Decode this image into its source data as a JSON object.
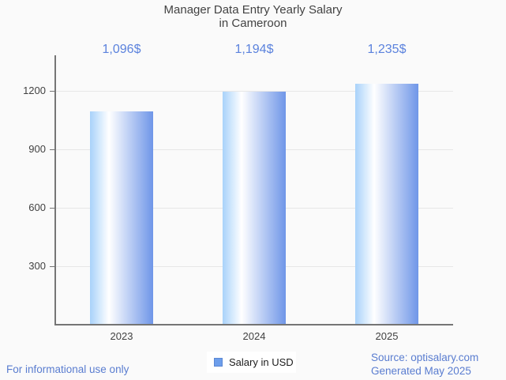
{
  "chart_data": {
    "type": "bar",
    "title": "Manager Data Entry Yearly Salary\nin Cameroon",
    "categories": [
      "2023",
      "2024",
      "2025"
    ],
    "series": [
      {
        "name": "Salary in USD",
        "values": [
          1096,
          1194,
          1235
        ]
      }
    ],
    "value_labels": [
      "1,096$",
      "1,194$",
      "1,235$"
    ],
    "xlabel": "",
    "ylabel": "",
    "y_ticks": [
      300,
      600,
      900,
      1200
    ],
    "ylim": [
      0,
      1385
    ],
    "grid": true,
    "legend_position": "bottom"
  },
  "legend": {
    "label": "Salary in USD"
  },
  "footer": {
    "disclaimer": "For informational use only",
    "source": "Source: optisalary.com",
    "generated": "Generated May 2025"
  },
  "colors": {
    "background": "#fafafa",
    "title_text": "#424242",
    "axis": "#757575",
    "gridline": "#e7e7e7",
    "tick_label": "#424242",
    "value_label_blue": "#5b82dd",
    "footer_blue": "#5a7dd0",
    "legend_swatch": "#6d9eeb",
    "bar_gradient": [
      "#a8d2fa",
      "#ffffff",
      "#6f96e8"
    ]
  }
}
